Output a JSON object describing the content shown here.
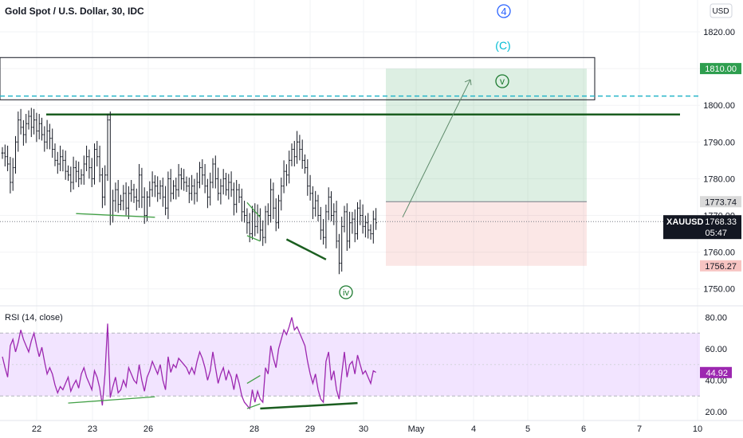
{
  "header": {
    "title": "Gold Spot / U.S. Dollar, 30, IDC",
    "currency_button": "USD"
  },
  "wave_labels": {
    "w4": "4",
    "wC": "(C)",
    "wv": "v",
    "wiv": "iv"
  },
  "price_axis": {
    "ticks": [
      "1820.00",
      "1810.00",
      "1800.00",
      "1790.00",
      "1780.00",
      "1770.00",
      "1760.00",
      "1750.00"
    ]
  },
  "price_badges": {
    "target": "1810.00",
    "entry": "1773.74",
    "symbol": "XAUUSD",
    "current": "1768.33",
    "countdown": "05:47",
    "stop": "1756.27"
  },
  "rsi": {
    "label": "RSI (14, close)",
    "ticks": [
      "80.00",
      "60.00",
      "40.00",
      "20.00"
    ],
    "current": "44.92",
    "upper_band": 70,
    "lower_band": 30
  },
  "time_axis": {
    "ticks": [
      "22",
      "23",
      "26",
      "28",
      "29",
      "30",
      "May",
      "4",
      "5",
      "6",
      "7",
      "10"
    ]
  },
  "colors": {
    "bull_zone": "#2e9e4f",
    "bear_zone": "#e5534b",
    "wave_blue": "#2962ff",
    "wave_cyan": "#00bcd4",
    "wave_green": "#1b7a2e",
    "rsi_line": "#9c27b0",
    "rsi_band": "#d9b3ff"
  },
  "chart_data": {
    "type": "candlestick",
    "symbol": "XAUUSD",
    "timeframe": "30",
    "price_range": [
      1745,
      1826
    ],
    "rsi_range": [
      16,
      84
    ],
    "series": [
      {
        "values": [
          1787,
          1786,
          1784,
          1779,
          1783,
          1790,
          1796,
          1794,
          1792,
          1795,
          1797,
          1794,
          1796,
          1793,
          1795,
          1792,
          1790,
          1793,
          1791,
          1788,
          1785,
          1784,
          1786,
          1785,
          1782,
          1781,
          1779,
          1783,
          1782,
          1780,
          1781,
          1784,
          1786,
          1783,
          1780,
          1788,
          1786,
          1781,
          1775,
          1781,
          1796,
          1770,
          1774,
          1777,
          1773,
          1774,
          1776,
          1772,
          1776,
          1777,
          1775,
          1774,
          1781,
          1775,
          1770,
          1775,
          1777,
          1779,
          1778,
          1776,
          1778,
          1775,
          1772,
          1780,
          1776,
          1778,
          1777,
          1781,
          1780,
          1779,
          1778,
          1776,
          1778,
          1776,
          1779,
          1783,
          1781,
          1778,
          1775,
          1779,
          1784,
          1780,
          1776,
          1778,
          1780,
          1777,
          1779,
          1777,
          1773,
          1777,
          1775,
          1771,
          1770,
          1768,
          1765,
          1771,
          1767,
          1770,
          1766,
          1764,
          1771,
          1770,
          1777,
          1772,
          1768,
          1774,
          1778,
          1782,
          1781,
          1785,
          1788,
          1786,
          1790,
          1788,
          1785,
          1783,
          1778,
          1776,
          1772,
          1774,
          1770,
          1766,
          1764,
          1771,
          1775,
          1770,
          1771,
          1763,
          1757,
          1767,
          1771,
          1763,
          1768,
          1769,
          1765,
          1772,
          1770,
          1767,
          1768,
          1766,
          1765,
          1769,
          1768
        ]
      },
      {
        "values": [
          55,
          48,
          42,
          62,
          66,
          58,
          64,
          72,
          66,
          62,
          58,
          65,
          70,
          62,
          55,
          61,
          52,
          44,
          48,
          44,
          37,
          32,
          36,
          34,
          38,
          42,
          33,
          37,
          40,
          35,
          44,
          48,
          42,
          38,
          34,
          46,
          42,
          35,
          24,
          44,
          76,
          29,
          36,
          42,
          32,
          34,
          40,
          36,
          48,
          44,
          40,
          38,
          50,
          40,
          33,
          42,
          46,
          52,
          48,
          44,
          50,
          40,
          34,
          55,
          45,
          50,
          48,
          54,
          52,
          50,
          48,
          44,
          48,
          44,
          52,
          58,
          54,
          48,
          40,
          46,
          58,
          48,
          38,
          44,
          48,
          40,
          46,
          42,
          34,
          44,
          38,
          30,
          26,
          24,
          22,
          34,
          26,
          33,
          28,
          26,
          48,
          44,
          62,
          54,
          48,
          60,
          66,
          72,
          69,
          74,
          80,
          72,
          74,
          70,
          66,
          62,
          52,
          44,
          38,
          44,
          34,
          28,
          26,
          52,
          58,
          40,
          46,
          34,
          28,
          44,
          58,
          42,
          50,
          52,
          44,
          56,
          50,
          44,
          46,
          42,
          38,
          46,
          45
        ]
      }
    ],
    "zones": {
      "target_price": 1810.0,
      "entry_price": 1773.74,
      "stop_price": 1756.27,
      "current_price": 1768.33
    },
    "levels": {
      "dashed_resistance": 1802.5,
      "solid_resistance": 1797.5,
      "box_top": 1813.0,
      "box_bottom": 1801.5
    },
    "divergence_lines": [
      {
        "pane": "price",
        "x": [
          28,
          58
        ],
        "y": [
          1770.5,
          1769.5
        ]
      },
      {
        "pane": "price",
        "x": [
          93,
          98
        ],
        "y": [
          1773.5,
          1769.5
        ]
      },
      {
        "pane": "price",
        "x": [
          93,
          98
        ],
        "y": [
          1764.5,
          1763
        ]
      },
      {
        "pane": "price",
        "x": [
          108,
          123
        ],
        "y": [
          1763.5,
          1758
        ]
      },
      {
        "pane": "rsi",
        "x": [
          25,
          58
        ],
        "y": [
          25.5,
          29.5
        ]
      },
      {
        "pane": "rsi",
        "x": [
          93,
          98
        ],
        "y": [
          38,
          43
        ]
      },
      {
        "pane": "rsi",
        "x": [
          93,
          98
        ],
        "y": [
          22,
          25
        ]
      },
      {
        "pane": "rsi",
        "x": [
          98,
          135
        ],
        "y": [
          22,
          25.5
        ]
      }
    ],
    "projection": {
      "from_price": 1769.5,
      "to_price": 1807
    }
  }
}
